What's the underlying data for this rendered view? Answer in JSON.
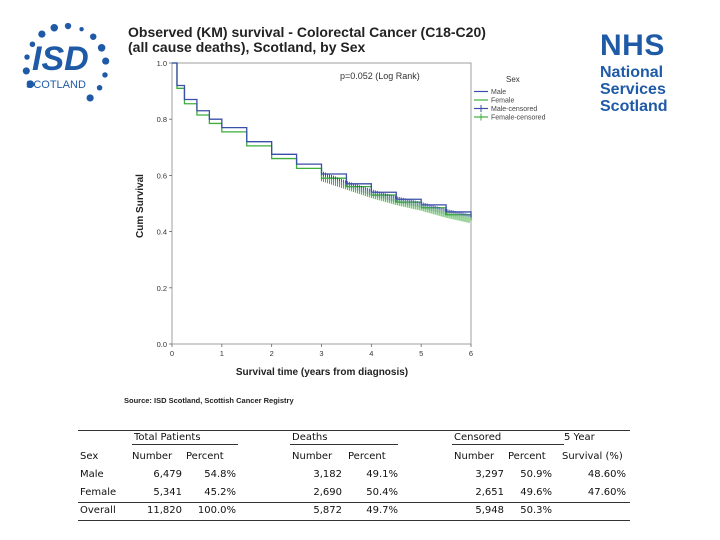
{
  "logos": {
    "isd_letters": "ISD",
    "isd_sub": "SCOTLAND",
    "nhs_word": "NHS",
    "nhs_lines": [
      "National",
      "Services",
      "Scotland"
    ]
  },
  "title_line1": "Observed (KM) survival - Colorectal Cancer (C18-C20)",
  "title_line2": "(all cause deaths), Scotland, by Sex",
  "source": "Source: ISD Scotland, Scottish Cancer Registry",
  "chart_data": {
    "type": "line",
    "xlabel": "Survival time (years from diagnosis)",
    "ylabel": "Cum Survival",
    "xlim": [
      0,
      6
    ],
    "ylim": [
      0.0,
      1.0
    ],
    "x_ticks": [
      "0",
      "1",
      "2",
      "3",
      "4",
      "5",
      "6"
    ],
    "y_ticks": [
      "0.0",
      "0.2",
      "0.4",
      "0.6",
      "0.8",
      "1.0"
    ],
    "annotation": "p=0.052 (Log Rank)",
    "legend_title": "Sex",
    "legend_position": "top-right",
    "series": [
      {
        "name": "Male",
        "color": "#3a4fa8",
        "x": [
          0,
          0.1,
          0.25,
          0.5,
          0.75,
          1.0,
          1.5,
          2.0,
          2.5,
          3.0,
          3.5,
          4.0,
          4.5,
          5.0,
          5.5,
          6.0
        ],
        "y": [
          1.0,
          0.92,
          0.87,
          0.83,
          0.8,
          0.77,
          0.72,
          0.675,
          0.64,
          0.605,
          0.57,
          0.54,
          0.515,
          0.495,
          0.47,
          0.45
        ]
      },
      {
        "name": "Female",
        "color": "#3cae3c",
        "x": [
          0,
          0.1,
          0.25,
          0.5,
          0.75,
          1.0,
          1.5,
          2.0,
          2.5,
          3.0,
          3.5,
          4.0,
          4.5,
          5.0,
          5.5,
          6.0
        ],
        "y": [
          1.0,
          0.91,
          0.855,
          0.815,
          0.785,
          0.755,
          0.705,
          0.66,
          0.625,
          0.59,
          0.56,
          0.53,
          0.505,
          0.485,
          0.46,
          0.44
        ]
      },
      {
        "name": "Male-censored",
        "color": "#3a4fa8"
      },
      {
        "name": "Female-censored",
        "color": "#3cae3c"
      }
    ]
  },
  "table": {
    "group_headers": [
      "Total Patients",
      "Deaths",
      "Censored",
      "5 Year"
    ],
    "sub_headers": [
      "Sex",
      "Number",
      "Percent",
      "Number",
      "Percent",
      "Number",
      "Percent",
      "Survival (%)"
    ],
    "rows": [
      [
        "Male",
        "6,479",
        "54.8%",
        "3,182",
        "49.1%",
        "3,297",
        "50.9%",
        "48.60%"
      ],
      [
        "Female",
        "5,341",
        "45.2%",
        "2,690",
        "50.4%",
        "2,651",
        "49.6%",
        "47.60%"
      ],
      [
        "Overall",
        "11,820",
        "100.0%",
        "5,872",
        "49.7%",
        "5,948",
        "50.3%",
        ""
      ]
    ]
  }
}
